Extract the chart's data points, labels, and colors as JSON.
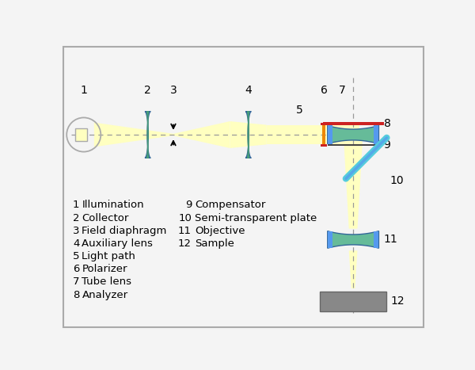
{
  "bg_color": "#f4f4f4",
  "border_color": "#aaaaaa",
  "colors": {
    "light_yellow": "#ffffc0",
    "blue_lens": "#5599ee",
    "green_lens": "#66bb99",
    "red_bar": "#cc2222",
    "orange_bar": "#ee8800",
    "gray_sample": "#888888",
    "cyan_plate": "#55ccdd",
    "dashed_line": "#999999",
    "white": "#ffffff"
  },
  "legend": [
    {
      "num": "1",
      "label": "Illumination",
      "col": 1
    },
    {
      "num": "2",
      "label": "Collector",
      "col": 1
    },
    {
      "num": "3",
      "label": "Field diaphragm",
      "col": 1
    },
    {
      "num": "4",
      "label": "Auxiliary lens",
      "col": 1
    },
    {
      "num": "5",
      "label": "Light path",
      "col": 1
    },
    {
      "num": "6",
      "label": "Polarizer",
      "col": 1
    },
    {
      "num": "7",
      "label": "Tube lens",
      "col": 1
    },
    {
      "num": "8",
      "label": "Analyzer",
      "col": 1
    },
    {
      "num": "9",
      "label": "Compensator",
      "col": 2
    },
    {
      "num": "10",
      "label": "Semi-transparent plate",
      "col": 2
    },
    {
      "num": "11",
      "label": "Objective",
      "col": 2
    },
    {
      "num": "12",
      "label": "Sample",
      "col": 2
    }
  ]
}
